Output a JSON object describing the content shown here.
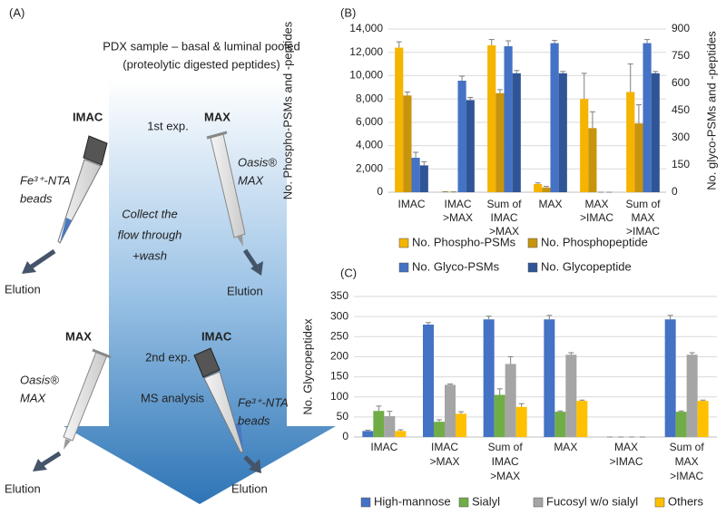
{
  "panel_a": {
    "label": "(A)",
    "sample": [
      "PDX sample – basal & luminal pooled",
      "(proteolytic digested peptides)"
    ],
    "exp1": "1st exp.",
    "exp2": "2nd exp.",
    "collect": [
      "Collect the",
      "flow through",
      "+wash"
    ],
    "ms": "MS analysis",
    "top_left": {
      "method": "IMAC",
      "material": [
        "Fe³⁺-NTA",
        "beads"
      ],
      "elution": "Elution"
    },
    "top_right": {
      "method": "MAX",
      "material": [
        "Oasis®",
        "MAX"
      ],
      "elution": "Elution"
    },
    "bottom_left": {
      "method": "MAX",
      "material": [
        "Oasis®",
        "MAX"
      ],
      "elution": "Elution"
    },
    "bottom_right": {
      "method": "IMAC",
      "material": [
        "Fe³⁺-NTA",
        "beads"
      ],
      "elution": "Elution"
    }
  },
  "chart_data": [
    {
      "type": "bar",
      "label": "(B)",
      "ylabel": "No. Phospho-PSMs and -peptides",
      "y2label": "No. glyco-PSMs and -peptides",
      "categories": [
        "IMAC",
        "IMAC\n>MAX",
        "Sum of\nIMAC\n>MAX",
        "MAX",
        "MAX\n>IMAC",
        "Sum of\nMAX\n>IMAC"
      ],
      "series": [
        {
          "name": "No. Phospho-PSMs",
          "color": "#f4b400",
          "values": [
            12400,
            50,
            12600,
            700,
            8000,
            8600
          ],
          "errors": [
            500,
            0,
            500,
            100,
            2200,
            2400
          ]
        },
        {
          "name": "No. Phosphopeptide",
          "color": "#c8940e",
          "values": [
            8300,
            30,
            8500,
            400,
            5500,
            5900
          ],
          "errors": [
            300,
            0,
            300,
            100,
            1400,
            1600
          ]
        },
        {
          "name": "No. Glyco-PSMs",
          "color": "#4472c4",
          "axis": "y2",
          "values": [
            190,
            615,
            805,
            822,
            0,
            822
          ],
          "errors": [
            30,
            25,
            30,
            15,
            0,
            20
          ]
        },
        {
          "name": "No. Glycopeptide",
          "color": "#2f5597",
          "axis": "y2",
          "values": [
            148,
            508,
            656,
            656,
            0,
            656
          ],
          "errors": [
            20,
            15,
            15,
            10,
            0,
            10
          ]
        }
      ],
      "ylim": [
        0,
        14000
      ],
      "yticks": [
        0,
        {
          "value": 2000,
          "label": "2,000"
        },
        {
          "value": 4000,
          "label": "4,000"
        },
        {
          "value": 6000,
          "label": "6,000"
        },
        {
          "value": 8000,
          "label": "8,000"
        },
        {
          "value": 10000,
          "label": "10,000"
        },
        {
          "value": 12000,
          "label": "12,000"
        },
        {
          "value": 14000,
          "label": "14,000"
        }
      ],
      "y2lim": [
        0,
        900
      ],
      "y2ticks": [
        0,
        150,
        300,
        450,
        600,
        750,
        900
      ],
      "grid": true,
      "legend": "bottom"
    },
    {
      "type": "bar",
      "label": "(C)",
      "ylabel": "No. Glycopeptidex",
      "categories": [
        "IMAC",
        "IMAC\n>MAX",
        "Sum of\nIMAC\n>MAX",
        "MAX",
        "MAX\n>IMAC",
        "Sum of\nMAX\n>IMAC"
      ],
      "series": [
        {
          "name": "High-mannose",
          "color": "#4472c4",
          "values": [
            15,
            280,
            293,
            293,
            0,
            293
          ],
          "errors": [
            2,
            5,
            8,
            10,
            0,
            10
          ]
        },
        {
          "name": "Sialyl",
          "color": "#70ad47",
          "values": [
            65,
            38,
            105,
            63,
            0,
            63
          ],
          "errors": [
            12,
            5,
            15,
            2,
            0,
            2
          ]
        },
        {
          "name": "Fucosyl w/o sialyl",
          "color": "#a5a5a5",
          "values": [
            52,
            130,
            182,
            205,
            0,
            205
          ],
          "errors": [
            12,
            2,
            18,
            5,
            0,
            5
          ]
        },
        {
          "name": "Others",
          "color": "#ffc000",
          "values": [
            15,
            58,
            75,
            90,
            0,
            90
          ],
          "errors": [
            3,
            5,
            8,
            2,
            0,
            2
          ]
        }
      ],
      "ylim": [
        0,
        350
      ],
      "yticks": [
        0,
        50,
        100,
        150,
        200,
        250,
        300,
        350
      ],
      "grid": true,
      "legend": "bottom"
    }
  ]
}
